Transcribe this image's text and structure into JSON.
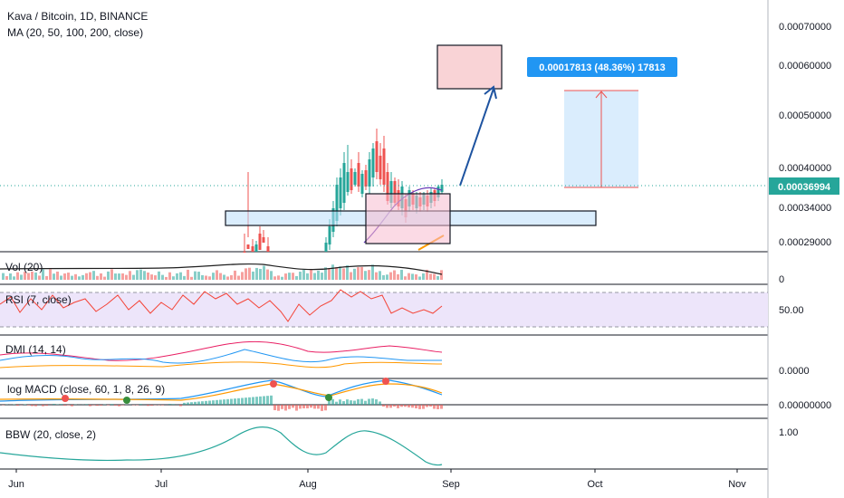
{
  "header": {
    "title": "Kava / Bitcoin, 1D, BINANCE",
    "indicator": "MA (20, 50, 100, 200, close)"
  },
  "colors": {
    "up": "#26a69a",
    "down": "#ef5350",
    "ma": "#673ab7",
    "ma_orange": "#ff9800",
    "arrow": "#1e53a0",
    "price_label": "#26a69a",
    "measure_label": "#2196f3",
    "rsi_band": "#ede5fa",
    "dmi_pos": "#2196f3",
    "dmi_neg": "#e91e63",
    "dmi_adx": "#ff9800",
    "macd_line": "#2196f3",
    "macd_signal": "#ff9800",
    "bbw_line": "#26a69a"
  },
  "price_label": "0.00036994",
  "measure_label": "0.00017813 (48.36%) 17813",
  "chart_data": [
    {
      "type": "candlestick",
      "name": "main",
      "title": "Kava / Bitcoin, 1D, BINANCE",
      "y_ticks": [
        "0.00070000",
        "0.00060000",
        "0.00050000",
        "0.00040000",
        "0.00034000",
        "0.00029000"
      ],
      "x_ticks": [
        "Jun",
        "Jul",
        "Aug",
        "Sep",
        "Oct",
        "Nov"
      ],
      "last_price": 0.00036994,
      "measure": {
        "from": 0.000368,
        "to": 0.000547,
        "change": 0.00017813,
        "percent": 48.36,
        "ticks": 17813
      },
      "projection_target": 0.000555
    },
    {
      "type": "bar",
      "name": "vol",
      "label": "Vol (20)",
      "y_ticks": [
        "0"
      ]
    },
    {
      "type": "line",
      "name": "rsi",
      "label": "RSI (7, close)",
      "y_ticks": [
        "50.00"
      ]
    },
    {
      "type": "line",
      "name": "dmi",
      "label": "DMI (14, 14)",
      "y_ticks": [
        "0.0000"
      ]
    },
    {
      "type": "line",
      "name": "macd",
      "label": "log MACD (close, 60, 1, 8, 26, 9)",
      "y_ticks": [
        "0.00000000"
      ]
    },
    {
      "type": "line",
      "name": "bbw",
      "label": "BBW (20, close, 2)",
      "y_ticks": [
        "1.00"
      ]
    }
  ]
}
